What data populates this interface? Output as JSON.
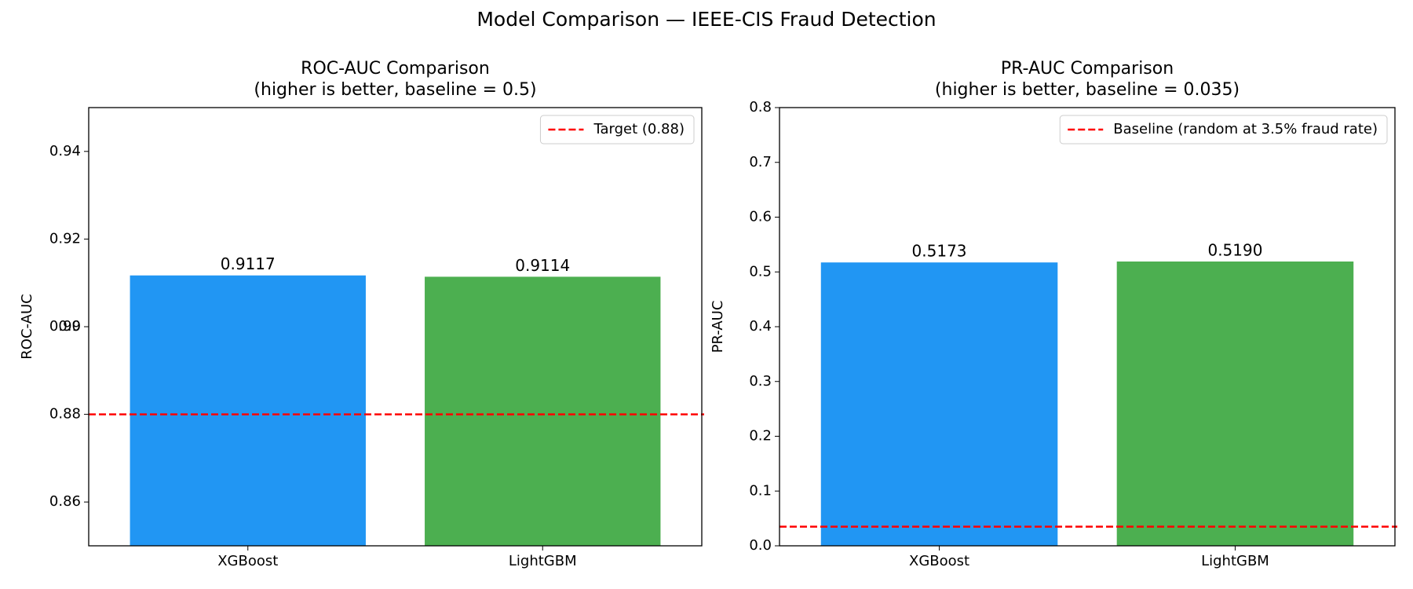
{
  "title": "Model Comparison — IEEE-CIS Fraud Detection",
  "chart_data": [
    {
      "type": "bar",
      "title": "ROC-AUC Comparison",
      "subtitle": "(higher is better, baseline = 0.5)",
      "ylabel": "ROC-AUC",
      "categories": [
        "XGBoost",
        "LightGBM"
      ],
      "values": [
        0.9117,
        0.9114
      ],
      "value_labels": [
        "0.9117",
        "0.9114"
      ],
      "colors": [
        "#2196f3",
        "#4caf50"
      ],
      "ylim": [
        0.85,
        0.95
      ],
      "yticks": [
        0.86,
        0.88,
        0.9,
        {
          "value": 0.9,
          "label": "0.90"
        },
        0.92,
        0.94
      ],
      "reference_line": {
        "value": 0.88,
        "label": "Target (0.88)",
        "color": "#ff0000"
      },
      "legend": "upper right"
    },
    {
      "type": "bar",
      "title": "PR-AUC Comparison",
      "subtitle": "(higher is better, baseline = 0.035)",
      "ylabel": "PR-AUC",
      "categories": [
        "XGBoost",
        "LightGBM"
      ],
      "values": [
        0.5173,
        0.519
      ],
      "value_labels": [
        "0.5173",
        "0.5190"
      ],
      "colors": [
        "#2196f3",
        "#4caf50"
      ],
      "ylim": [
        0,
        0.8
      ],
      "yticks": [
        {
          "value": 0,
          "label": "0.0"
        },
        0.1,
        0.2,
        0.3,
        0.4,
        0.5,
        0.6,
        0.7,
        0.8
      ],
      "reference_line": {
        "value": 0.035,
        "label": "Baseline (random at 3.5% fraud rate)",
        "color": "#ff0000"
      },
      "legend": "upper right"
    }
  ]
}
